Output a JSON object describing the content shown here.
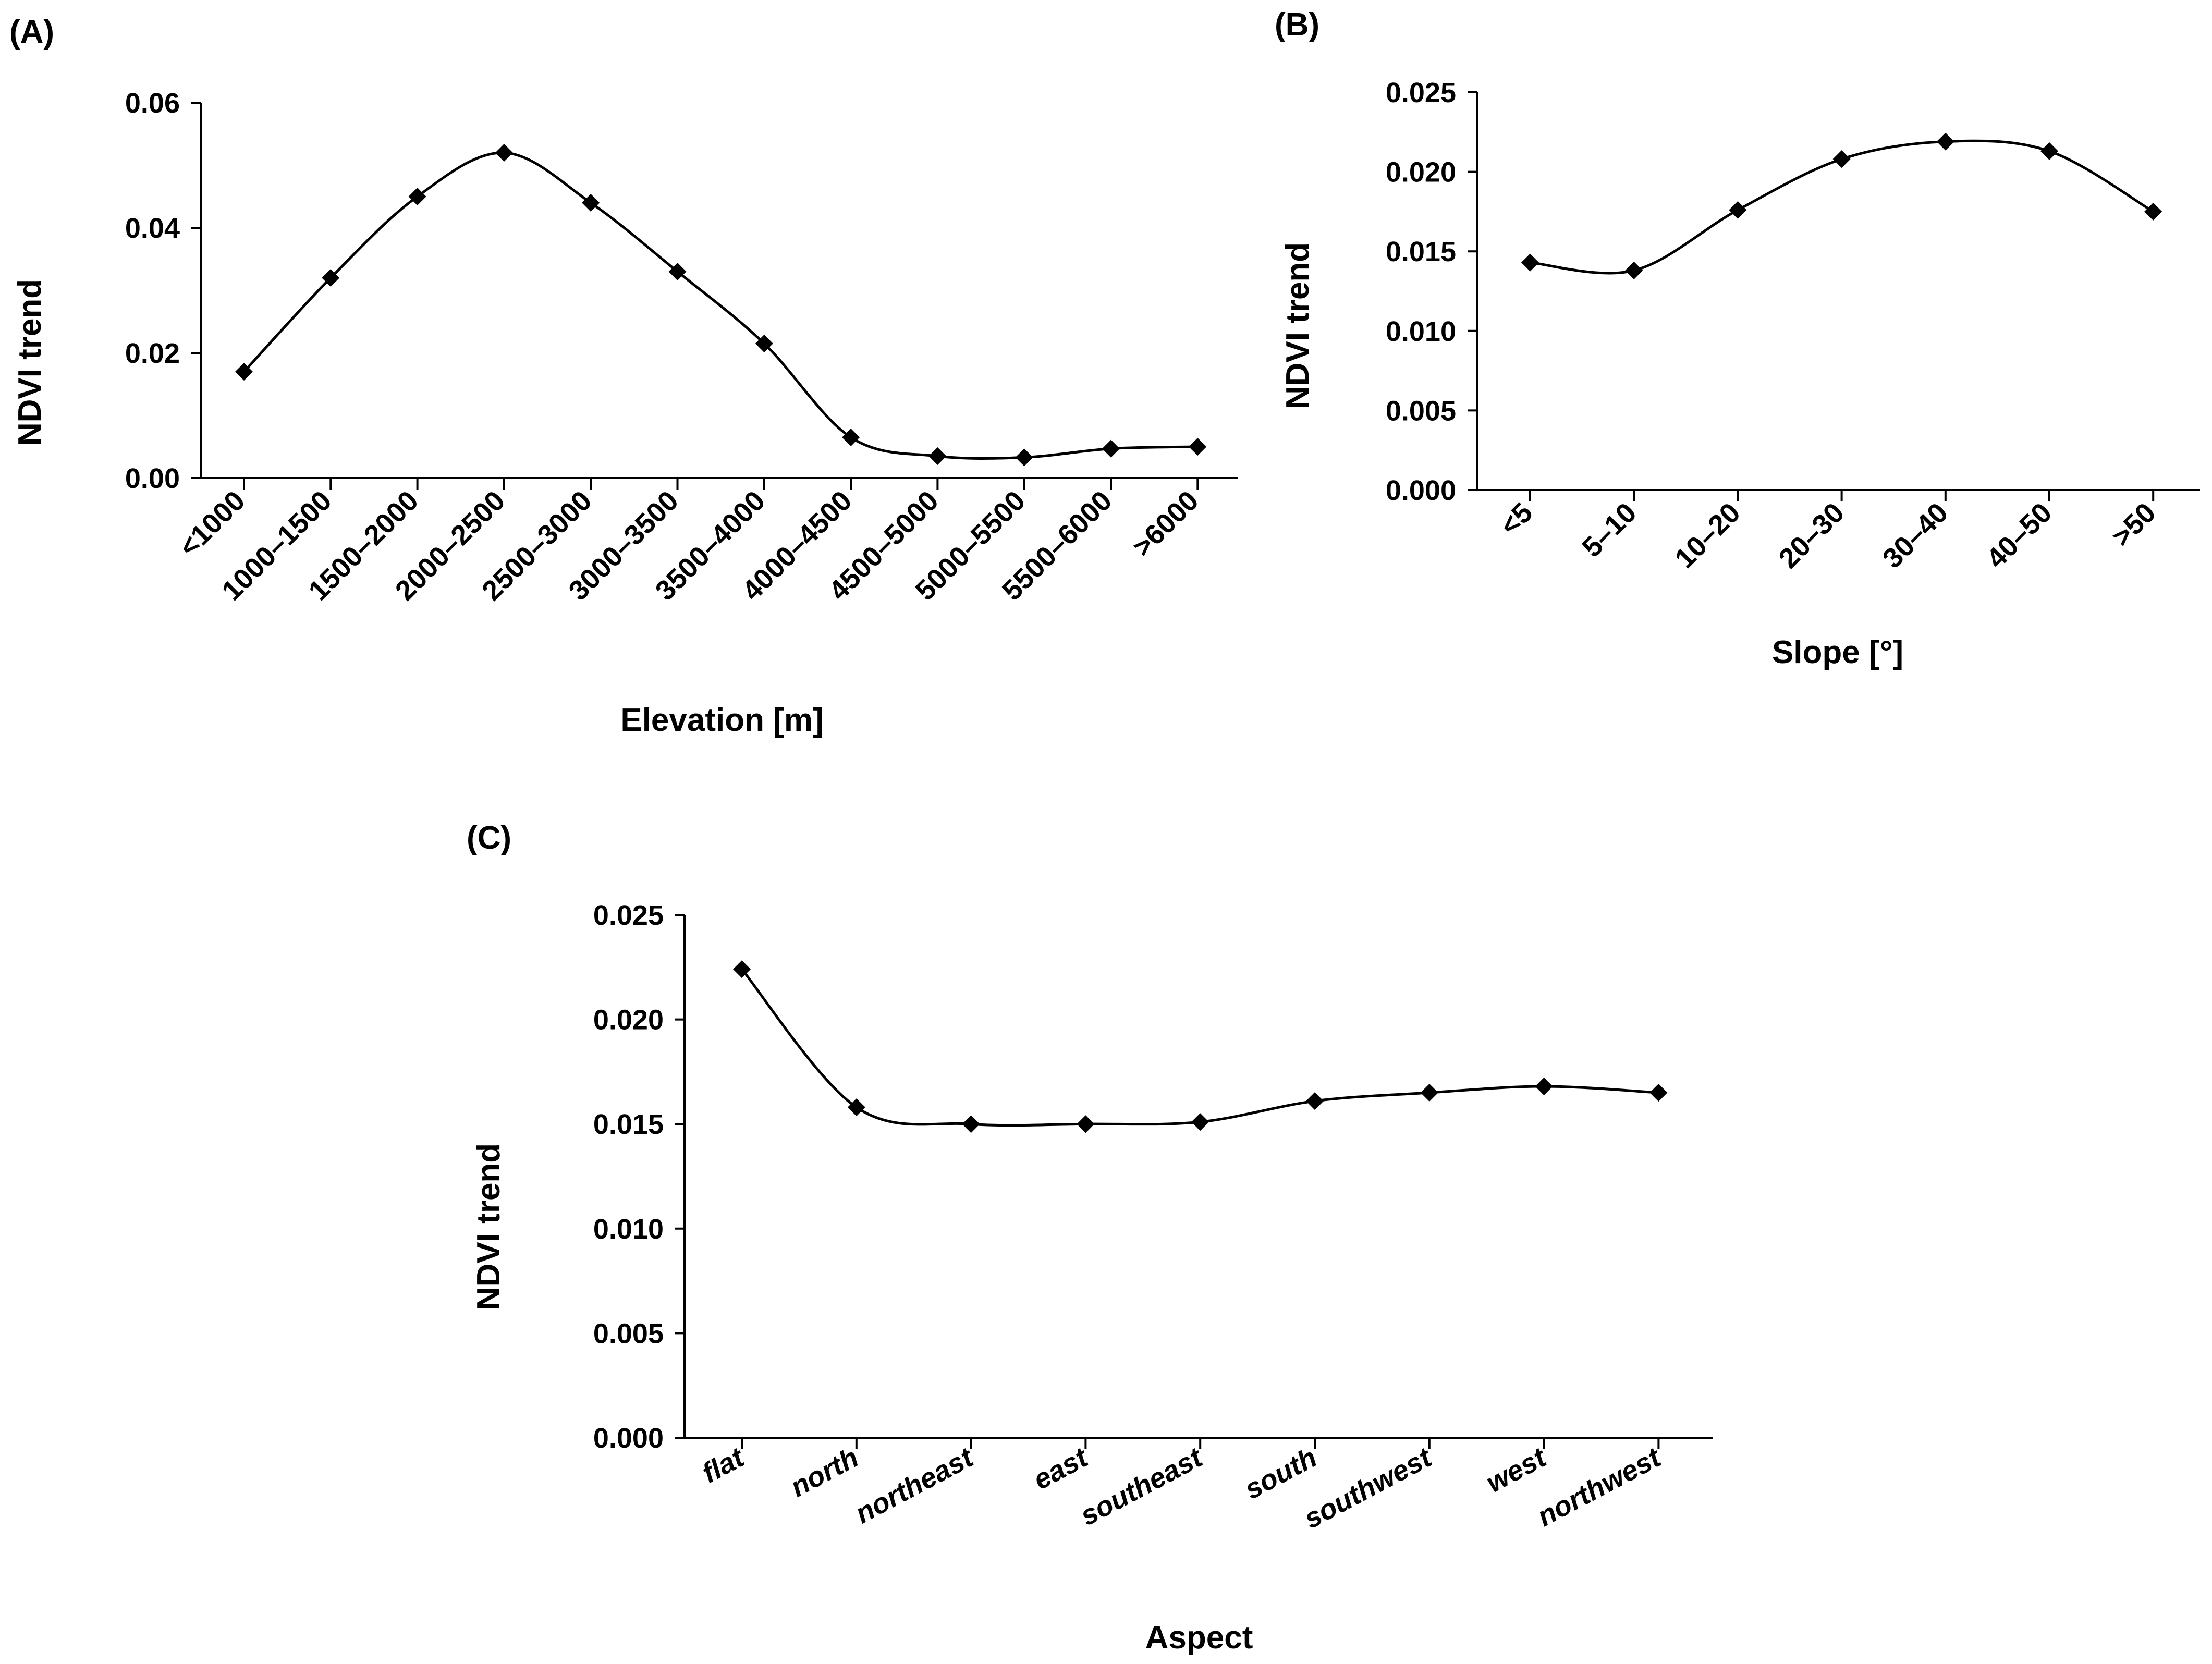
{
  "chart_data": [
    {
      "id": "A",
      "type": "line",
      "panel_label": "(A)",
      "title": "",
      "xlabel": "Elevation [m]",
      "ylabel": "NDVI trend",
      "categories": [
        "<1000",
        "1000–1500",
        "1500–2000",
        "2000–2500",
        "2500–3000",
        "3000–3500",
        "3500–4000",
        "4000–4500",
        "4500–5000",
        "5000–5500",
        "5500–6000",
        ">6000"
      ],
      "series": [
        {
          "name": "NDVI trend",
          "values": [
            0.017,
            0.032,
            0.045,
            0.052,
            0.044,
            0.033,
            0.0215,
            0.0065,
            0.0035,
            0.0033,
            0.0047,
            0.005
          ]
        }
      ],
      "ylim": [
        0,
        0.06
      ],
      "yticks": [
        "0.00",
        "0.02",
        "0.04",
        "0.06"
      ],
      "grid": false,
      "marker": "diamond",
      "smooth": true
    },
    {
      "id": "B",
      "type": "line",
      "panel_label": "(B)",
      "title": "",
      "xlabel": "Slope [°]",
      "ylabel": "NDVI trend",
      "categories": [
        "<5",
        "5–10",
        "10–20",
        "20–30",
        "30–40",
        "40–50",
        ">50"
      ],
      "series": [
        {
          "name": "NDVI trend",
          "values": [
            0.0143,
            0.0138,
            0.0176,
            0.0208,
            0.0219,
            0.0213,
            0.0175
          ]
        }
      ],
      "ylim": [
        0,
        0.025
      ],
      "yticks": [
        "0.000",
        "0.005",
        "0.010",
        "0.015",
        "0.020",
        "0.025"
      ],
      "grid": false,
      "marker": "diamond",
      "smooth": true
    },
    {
      "id": "C",
      "type": "line",
      "panel_label": "(C)",
      "title": "",
      "xlabel": "Aspect",
      "ylabel": "NDVI trend",
      "categories": [
        "flat",
        "north",
        "northeast",
        "east",
        "southeast",
        "south",
        "southwest",
        "west",
        "northwest"
      ],
      "series": [
        {
          "name": "NDVI trend",
          "values": [
            0.0224,
            0.0158,
            0.015,
            0.015,
            0.0151,
            0.0161,
            0.0165,
            0.0168,
            0.0165
          ]
        }
      ],
      "ylim": [
        0,
        0.025
      ],
      "yticks": [
        "0.000",
        "0.005",
        "0.010",
        "0.015",
        "0.020",
        "0.025"
      ],
      "grid": false,
      "marker": "diamond",
      "smooth": true,
      "tick_style": "italic"
    }
  ]
}
